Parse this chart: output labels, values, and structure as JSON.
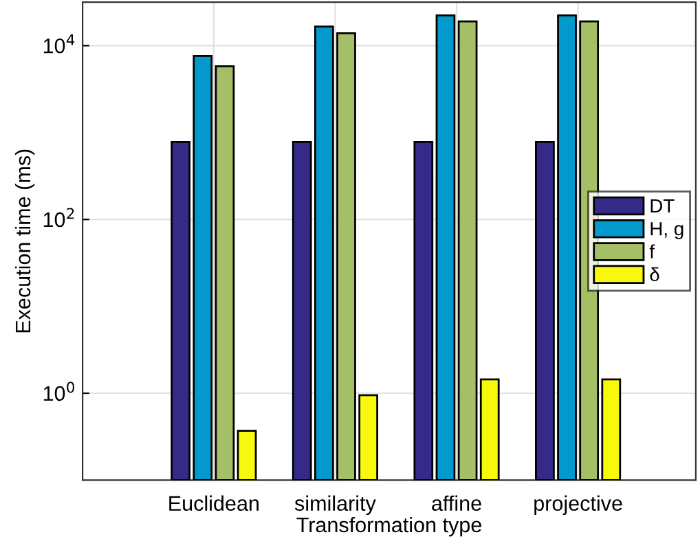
{
  "chart_data": {
    "type": "bar",
    "xlabel": "Transformation type",
    "ylabel": "Execution time (ms)",
    "categories": [
      "Euclidean",
      "similarity",
      "affine",
      "projective"
    ],
    "series": [
      {
        "name": "DT",
        "color": "#352a87",
        "values": [
          780,
          780,
          780,
          780
        ]
      },
      {
        "name": "H, g",
        "color": "#0399cc",
        "values": [
          7600,
          16600,
          22300,
          22300
        ]
      },
      {
        "name": "f",
        "color": "#a5bf66",
        "values": [
          5800,
          13900,
          19000,
          19000
        ]
      },
      {
        "name": "δ",
        "color": "#f8f80c",
        "values": [
          0.37,
          0.95,
          1.44,
          1.44
        ]
      }
    ],
    "log": "y",
    "ylim": [
      0.1,
      31623
    ],
    "yticks": [
      {
        "value": 1,
        "label": "10$^{0}$"
      },
      {
        "value": 100,
        "label": "10$^{2}$"
      },
      {
        "value": 10000,
        "label": "10$^{4}$"
      }
    ],
    "grid": true,
    "legend": "right"
  }
}
